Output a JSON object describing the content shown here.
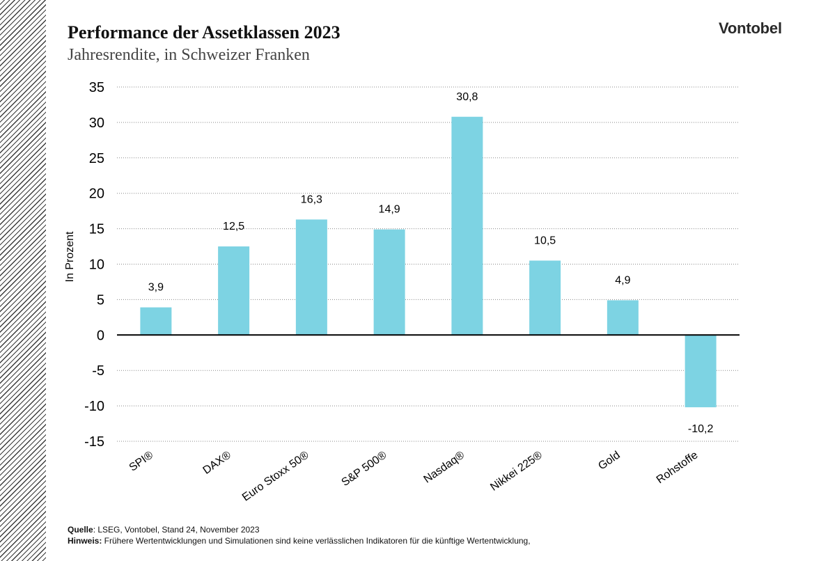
{
  "header": {
    "title": "Performance der Assetklassen 2023",
    "subtitle": "Jahresrendite, in Schweizer Franken",
    "logo_text": "Vontobel"
  },
  "footer": {
    "source_label": "Quelle",
    "source_text": ": LSEG, Vontobel, Stand 24, November 2023",
    "note_label": "Hinweis:",
    "note_text": " Frühere Wertentwicklungen und Simulationen sind keine verlässlichen Indikatoren für die künftige Wertentwicklung,"
  },
  "chart_data": {
    "type": "bar",
    "categories": [
      "SPI®",
      "DAX®",
      "Euro Stoxx 50®",
      "S&P 500®",
      "Nasdaq®",
      "Nikkei 225®",
      "Gold",
      "Rohstoffe"
    ],
    "values": [
      3.9,
      12.5,
      16.3,
      14.9,
      30.8,
      10.5,
      4.9,
      -10.2
    ],
    "value_labels": [
      "3,9",
      "12,5",
      "16,3",
      "14,9",
      "30,8",
      "10,5",
      "4,9",
      "-10,2"
    ],
    "ylabel": "In Prozent",
    "ylim": [
      -15,
      35
    ],
    "yticks": [
      35,
      30,
      25,
      20,
      15,
      10,
      5,
      0,
      -5,
      -10,
      -15
    ],
    "ytick_labels": [
      "35",
      "30",
      "25",
      "20",
      "15",
      "10",
      "5",
      "0",
      "-5",
      "-10",
      "-15"
    ],
    "grid": true,
    "bar_color": "#7dd3e3"
  }
}
